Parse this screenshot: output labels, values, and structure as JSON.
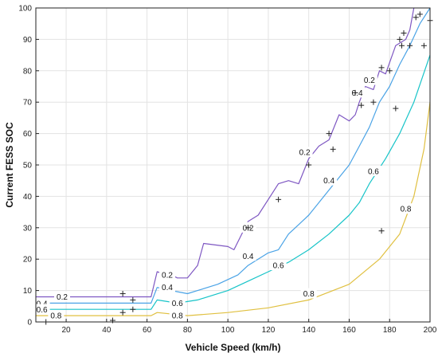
{
  "chart_data": {
    "type": "contour",
    "title": "",
    "xlabel": "Vehicle Speed (km/h)",
    "ylabel": "Current FESS SOC",
    "xlim": [
      5,
      200
    ],
    "ylim": [
      0,
      100
    ],
    "xticks": [
      20,
      40,
      60,
      80,
      100,
      120,
      140,
      160,
      180,
      200
    ],
    "yticks": [
      0,
      10,
      20,
      30,
      40,
      50,
      60,
      70,
      80,
      90,
      100
    ],
    "grid": true,
    "colors": {
      "0.2": "#7e57c2",
      "0.4": "#4aa3e6",
      "0.6": "#17c4c8",
      "0.8": "#e0c040",
      "markers": "#222222"
    },
    "levels": [
      {
        "level": "0.2",
        "points": [
          [
            5,
            8
          ],
          [
            62,
            8
          ],
          [
            65,
            16
          ],
          [
            70,
            15
          ],
          [
            72,
            15
          ],
          [
            75,
            14
          ],
          [
            80,
            14
          ],
          [
            85,
            18
          ],
          [
            88,
            25
          ],
          [
            100,
            24
          ],
          [
            103,
            23
          ],
          [
            110,
            32
          ],
          [
            115,
            34
          ],
          [
            125,
            44
          ],
          [
            130,
            45
          ],
          [
            135,
            44
          ],
          [
            140,
            52
          ],
          [
            145,
            56
          ],
          [
            150,
            58
          ],
          [
            155,
            66
          ],
          [
            160,
            64
          ],
          [
            163,
            66
          ],
          [
            165,
            70
          ],
          [
            168,
            75
          ],
          [
            172,
            74
          ],
          [
            175,
            80
          ],
          [
            178,
            79
          ],
          [
            183,
            88
          ],
          [
            188,
            90
          ],
          [
            190,
            93
          ],
          [
            192,
            100
          ]
        ],
        "labels": [
          [
            18,
            8
          ],
          [
            70,
            15
          ],
          [
            110,
            30
          ],
          [
            138,
            54
          ],
          [
            170,
            77
          ]
        ]
      },
      {
        "level": "0.4",
        "points": [
          [
            5,
            6
          ],
          [
            62,
            6
          ],
          [
            65,
            11
          ],
          [
            72,
            10
          ],
          [
            80,
            9
          ],
          [
            85,
            10
          ],
          [
            95,
            12
          ],
          [
            105,
            15
          ],
          [
            110,
            18
          ],
          [
            120,
            22
          ],
          [
            125,
            23
          ],
          [
            130,
            28
          ],
          [
            135,
            31
          ],
          [
            140,
            34
          ],
          [
            145,
            38
          ],
          [
            150,
            42
          ],
          [
            155,
            46
          ],
          [
            160,
            50
          ],
          [
            165,
            56
          ],
          [
            170,
            62
          ],
          [
            175,
            70
          ],
          [
            180,
            75
          ],
          [
            185,
            82
          ],
          [
            190,
            88
          ],
          [
            195,
            95
          ],
          [
            200,
            100
          ]
        ],
        "labels": [
          [
            8,
            5.9
          ],
          [
            70,
            11
          ],
          [
            110,
            21
          ],
          [
            150,
            45
          ],
          [
            164,
            73
          ]
        ]
      },
      {
        "level": "0.6",
        "points": [
          [
            5,
            4
          ],
          [
            62,
            4
          ],
          [
            65,
            7
          ],
          [
            75,
            6
          ],
          [
            85,
            7
          ],
          [
            100,
            10
          ],
          [
            110,
            13
          ],
          [
            120,
            16
          ],
          [
            130,
            19
          ],
          [
            140,
            23
          ],
          [
            150,
            28
          ],
          [
            160,
            34
          ],
          [
            165,
            38
          ],
          [
            170,
            44
          ],
          [
            178,
            52
          ],
          [
            185,
            60
          ],
          [
            192,
            70
          ],
          [
            200,
            85
          ]
        ],
        "labels": [
          [
            8,
            3.9
          ],
          [
            75,
            6
          ],
          [
            125,
            18
          ],
          [
            172,
            48
          ]
        ]
      },
      {
        "level": "0.8",
        "points": [
          [
            5,
            2
          ],
          [
            62,
            2
          ],
          [
            65,
            3
          ],
          [
            80,
            2
          ],
          [
            100,
            3
          ],
          [
            120,
            4.5
          ],
          [
            140,
            7
          ],
          [
            160,
            12
          ],
          [
            175,
            20
          ],
          [
            185,
            28
          ],
          [
            192,
            40
          ],
          [
            197,
            55
          ],
          [
            200,
            70
          ]
        ],
        "labels": [
          [
            15,
            2
          ],
          [
            75,
            2
          ],
          [
            140,
            9
          ],
          [
            188,
            36
          ]
        ]
      }
    ],
    "markers": [
      [
        10,
        0
      ],
      [
        43,
        0.5
      ],
      [
        48,
        9
      ],
      [
        53,
        7
      ],
      [
        53,
        4
      ],
      [
        48,
        3
      ],
      [
        110,
        30
      ],
      [
        125,
        39
      ],
      [
        140,
        50
      ],
      [
        150,
        60
      ],
      [
        152,
        55
      ],
      [
        163,
        73
      ],
      [
        166,
        69
      ],
      [
        172,
        70
      ],
      [
        176,
        81
      ],
      [
        180,
        80
      ],
      [
        176,
        29
      ],
      [
        183,
        68
      ],
      [
        185,
        90
      ],
      [
        186,
        88
      ],
      [
        187,
        92
      ],
      [
        190,
        88
      ],
      [
        193,
        97
      ],
      [
        195,
        98
      ],
      [
        197,
        88
      ],
      [
        200,
        96
      ]
    ]
  }
}
